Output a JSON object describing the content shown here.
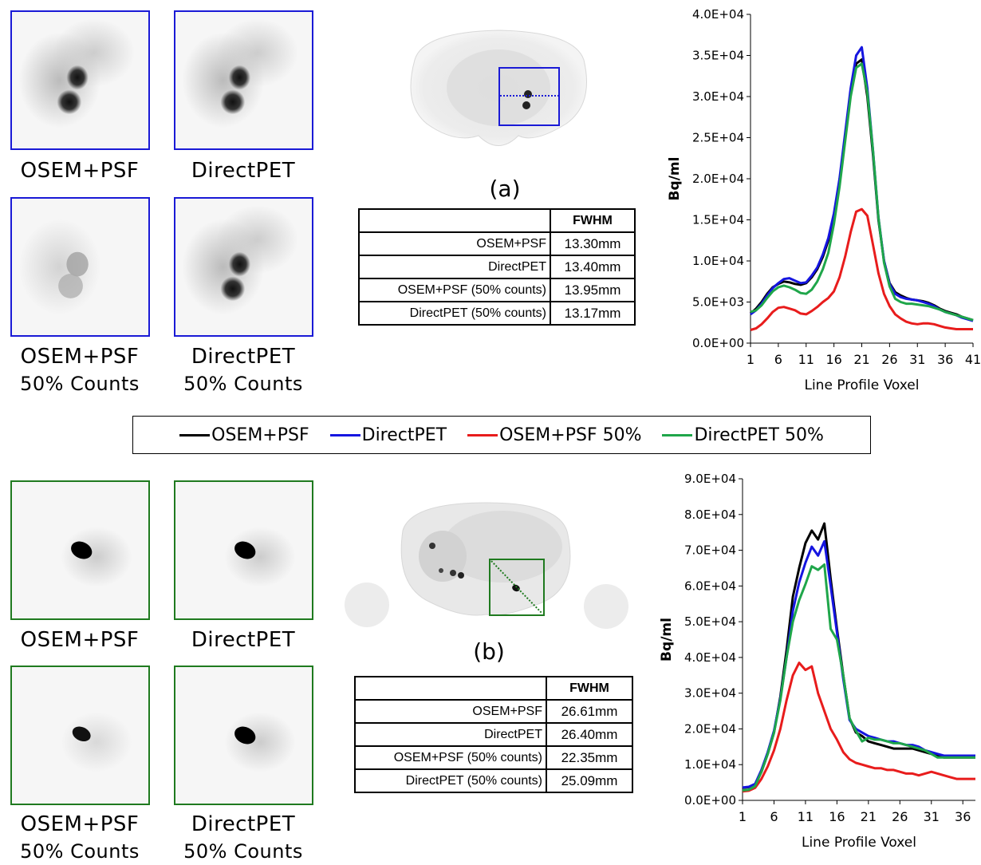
{
  "panel_a": {
    "label": "(a)",
    "thumbs": [
      {
        "line1": "OSEM+PSF",
        "line2": ""
      },
      {
        "line1": "DirectPET",
        "line2": ""
      },
      {
        "line1": "OSEM+PSF",
        "line2": "50% Counts"
      },
      {
        "line1": "DirectPET",
        "line2": "50% Counts"
      }
    ],
    "table": {
      "header": "FWHM",
      "rows": [
        {
          "label": "OSEM+PSF",
          "value": "13.30mm"
        },
        {
          "label": "DirectPET",
          "value": "13.40mm"
        },
        {
          "label": "OSEM+PSF (50% counts)",
          "value": "13.95mm"
        },
        {
          "label": "DirectPET (50% counts)",
          "value": "13.17mm"
        }
      ]
    }
  },
  "panel_b": {
    "label": "(b)",
    "thumbs": [
      {
        "line1": "OSEM+PSF",
        "line2": ""
      },
      {
        "line1": "DirectPET",
        "line2": ""
      },
      {
        "line1": "OSEM+PSF",
        "line2": "50% Counts"
      },
      {
        "line1": "DirectPET",
        "line2": "50% Counts"
      }
    ],
    "table": {
      "header": "FWHM",
      "rows": [
        {
          "label": "OSEM+PSF",
          "value": "26.61mm"
        },
        {
          "label": "DirectPET",
          "value": "26.40mm"
        },
        {
          "label": "OSEM+PSF (50% counts)",
          "value": "22.35mm"
        },
        {
          "label": "DirectPET (50% counts)",
          "value": "25.09mm"
        }
      ]
    }
  },
  "legend": [
    {
      "name": "OSEM+PSF",
      "color": "#000000"
    },
    {
      "name": "DirectPET",
      "color": "#1515e0"
    },
    {
      "name": "OSEM+PSF 50%",
      "color": "#e81c1c"
    },
    {
      "name": "DirectPET 50%",
      "color": "#1fa64a"
    }
  ],
  "chart_data": [
    {
      "type": "line",
      "title": "",
      "xlabel": "Line Profile Voxel",
      "ylabel": "Bq/ml",
      "xlim": [
        1,
        41
      ],
      "ylim": [
        0,
        40000
      ],
      "xticks": [
        1,
        6,
        11,
        16,
        21,
        26,
        31,
        36,
        41
      ],
      "yticks": [
        "0.0E+00",
        "5.0E+03",
        "1.0E+04",
        "1.5E+04",
        "2.0E+04",
        "2.5E+04",
        "3.0E+04",
        "3.5E+04",
        "4.0E+04"
      ],
      "grid": false,
      "x": [
        1,
        2,
        3,
        4,
        5,
        6,
        7,
        8,
        9,
        10,
        11,
        12,
        13,
        14,
        15,
        16,
        17,
        18,
        19,
        20,
        21,
        22,
        23,
        24,
        25,
        26,
        27,
        28,
        29,
        30,
        31,
        32,
        33,
        34,
        35,
        36,
        37,
        38,
        39,
        40,
        41
      ],
      "series": [
        {
          "name": "OSEM+PSF",
          "color": "#000000",
          "values": [
            3600,
            4200,
            5000,
            6000,
            6800,
            7200,
            7500,
            7400,
            7200,
            7100,
            7300,
            8000,
            9000,
            10500,
            12500,
            15500,
            19500,
            25000,
            30500,
            34000,
            34500,
            30000,
            23000,
            15000,
            10000,
            7300,
            6200,
            5800,
            5500,
            5300,
            5200,
            5100,
            4900,
            4600,
            4200,
            3900,
            3700,
            3500,
            3200,
            3000,
            2800
          ]
        },
        {
          "name": "DirectPET",
          "color": "#1515e0",
          "values": [
            3500,
            4000,
            4800,
            5800,
            6700,
            7300,
            7800,
            7900,
            7600,
            7300,
            7400,
            8200,
            9200,
            10800,
            12800,
            15800,
            20000,
            25500,
            31000,
            35000,
            36000,
            31000,
            23500,
            15300,
            10000,
            7200,
            6000,
            5600,
            5400,
            5300,
            5200,
            5000,
            4800,
            4500,
            4100,
            3800,
            3600,
            3400,
            3100,
            2900,
            2700
          ]
        },
        {
          "name": "OSEM+PSF 50%",
          "color": "#e81c1c",
          "values": [
            1600,
            1800,
            2300,
            3000,
            3800,
            4300,
            4400,
            4200,
            4000,
            3600,
            3500,
            3900,
            4400,
            5000,
            5500,
            6300,
            8000,
            10500,
            13500,
            16000,
            16300,
            15500,
            12000,
            8500,
            6000,
            4500,
            3500,
            3000,
            2600,
            2400,
            2300,
            2400,
            2400,
            2300,
            2100,
            1900,
            1800,
            1700,
            1700,
            1700,
            1700
          ]
        },
        {
          "name": "DirectPET 50%",
          "color": "#1fa64a",
          "values": [
            3800,
            4000,
            4600,
            5500,
            6300,
            6800,
            7000,
            6800,
            6500,
            6100,
            6000,
            6500,
            7500,
            9000,
            11000,
            14500,
            19000,
            24500,
            30000,
            33500,
            34000,
            30500,
            23500,
            15300,
            9800,
            6900,
            5400,
            5000,
            4800,
            4800,
            4700,
            4600,
            4500,
            4300,
            4100,
            3800,
            3600,
            3400,
            3200,
            3000,
            2800
          ]
        }
      ]
    },
    {
      "type": "line",
      "title": "",
      "xlabel": "Line Profile Voxel",
      "ylabel": "Bq/ml",
      "xlim": [
        1,
        38
      ],
      "ylim": [
        0,
        90000
      ],
      "xticks": [
        1,
        6,
        11,
        16,
        21,
        26,
        31,
        36
      ],
      "yticks": [
        "0.0E+00",
        "1.0E+04",
        "2.0E+04",
        "3.0E+04",
        "4.0E+04",
        "5.0E+04",
        "6.0E+04",
        "7.0E+04",
        "8.0E+04",
        "9.0E+04"
      ],
      "grid": false,
      "x": [
        1,
        2,
        3,
        4,
        5,
        6,
        7,
        8,
        9,
        10,
        11,
        12,
        13,
        14,
        15,
        16,
        17,
        18,
        19,
        20,
        21,
        22,
        23,
        24,
        25,
        26,
        27,
        28,
        29,
        30,
        31,
        32,
        33,
        34,
        35,
        36,
        37,
        38
      ],
      "series": [
        {
          "name": "OSEM+PSF",
          "color": "#000000",
          "values": [
            3500,
            3700,
            4500,
            8000,
            13000,
            19000,
            29000,
            42000,
            57000,
            65000,
            72000,
            75500,
            73000,
            77500,
            62000,
            48000,
            35000,
            23000,
            19000,
            18000,
            16500,
            16000,
            15500,
            15000,
            14500,
            14500,
            14500,
            14500,
            14000,
            13500,
            13000,
            12500,
            12000,
            12000,
            12000,
            12000,
            12000,
            12000
          ]
        },
        {
          "name": "DirectPET",
          "color": "#1515e0",
          "values": [
            3600,
            3800,
            4600,
            8500,
            13500,
            19500,
            28500,
            40000,
            53000,
            61000,
            66500,
            71000,
            68500,
            72500,
            60000,
            47000,
            34000,
            22500,
            20000,
            19000,
            18000,
            17500,
            17000,
            16500,
            16500,
            16000,
            15500,
            15500,
            15000,
            14000,
            13500,
            13000,
            12500,
            12500,
            12500,
            12500,
            12500,
            12500
          ]
        },
        {
          "name": "OSEM+PSF 50%",
          "color": "#e81c1c",
          "values": [
            2500,
            2700,
            3500,
            6000,
            9500,
            14000,
            20000,
            28000,
            35000,
            38500,
            36500,
            37500,
            30000,
            25000,
            20000,
            17000,
            13500,
            11500,
            10500,
            10000,
            9500,
            9000,
            9000,
            8500,
            8500,
            8000,
            7500,
            7500,
            7000,
            7500,
            8000,
            7500,
            7000,
            6500,
            6000,
            6000,
            6000,
            6000
          ]
        },
        {
          "name": "DirectPET 50%",
          "color": "#1fa64a",
          "values": [
            2800,
            3000,
            4000,
            8000,
            13000,
            19000,
            28000,
            40000,
            50000,
            56000,
            60500,
            65500,
            64500,
            66000,
            48000,
            45000,
            35000,
            23000,
            19500,
            16500,
            17500,
            17000,
            17000,
            16500,
            16000,
            16000,
            15500,
            15000,
            14500,
            14000,
            13000,
            12000,
            12000,
            12000,
            12000,
            12000,
            12000,
            12000
          ]
        }
      ]
    }
  ]
}
